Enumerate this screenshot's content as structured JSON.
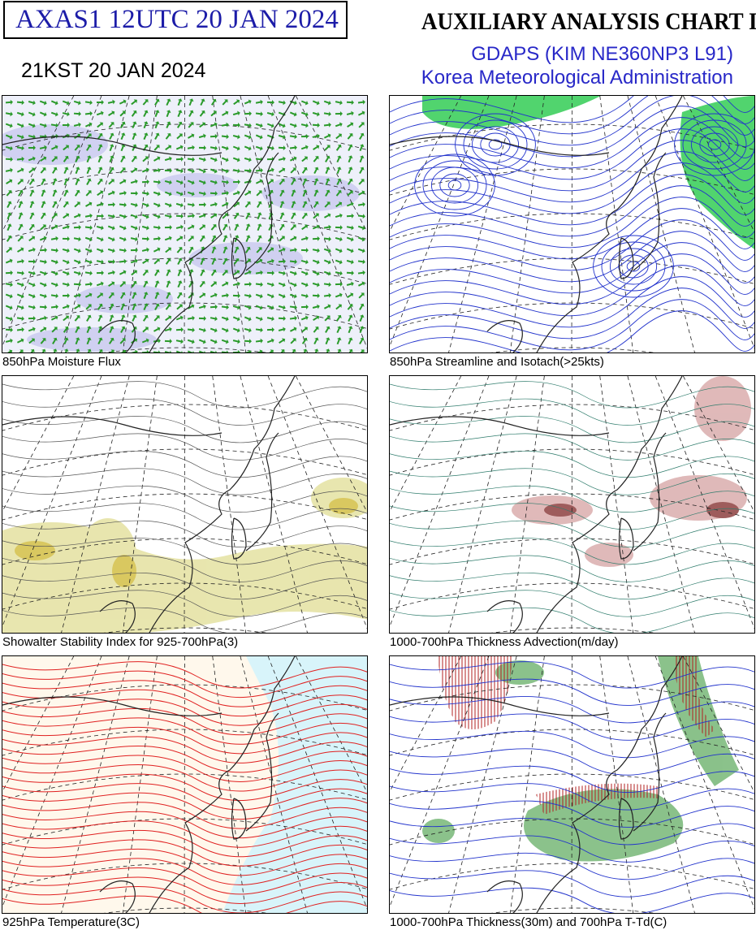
{
  "header": {
    "code": "AXAS1  12UTC 20 JAN 2024",
    "title": "AUXILIARY ANALYSIS CHART  I",
    "model": "GDAPS (KIM NE360NP3 L91)",
    "agency": "Korea Meteorological Administration",
    "local_time": "21KST 20 JAN 2024"
  },
  "panels": [
    {
      "caption": "850hPa Moisture Flux"
    },
    {
      "caption": "850hPa Streamline and Isotach(>25kts)"
    },
    {
      "caption": "Showalter Stability Index for 925-700hPa(3)"
    },
    {
      "caption": "1000-700hPa Thickness Advection(m/day)"
    },
    {
      "caption": "925hPa Temperature(3C)"
    },
    {
      "caption": "1000-700hPa Thickness(30m) and 700hPa T-Td(C)"
    }
  ]
}
